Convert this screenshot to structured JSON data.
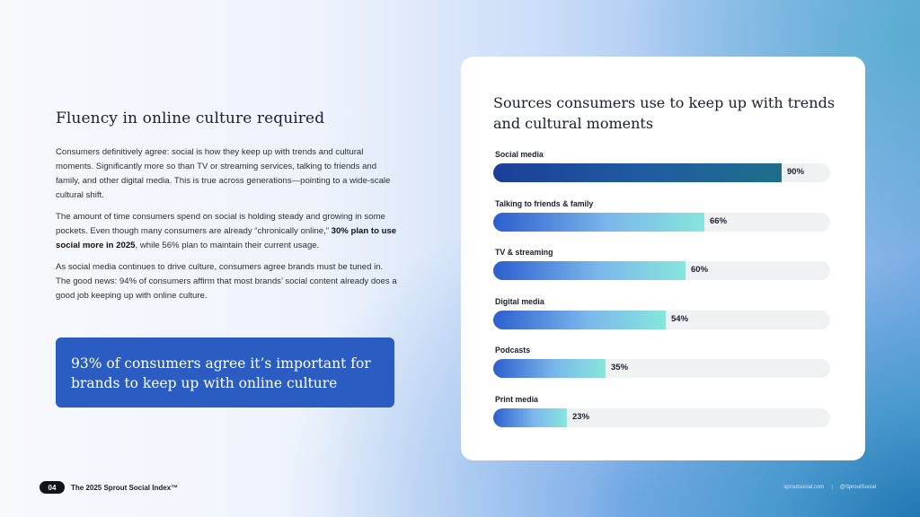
{
  "left": {
    "heading": "Fluency in online culture required",
    "p1": "Consumers definitively agree: social is how they keep up with trends and cultural moments. Significantly more so than TV or streaming services, talking to friends and family, and other digital media. This is true across generations—pointing to a wide-scale cultural shift.",
    "p2_a": "The amount of time consumers spend on social is holding steady and growing in some pockets. Even though many consumers are already “chronically online,” ",
    "p2_bold": "30% plan to use social more in 2025",
    "p2_b": ", while 56% plan to maintain their current usage.",
    "p3": "As social media continues to drive culture, consumers agree brands must be tuned in. The good news: 94% of consumers affirm that most brands’ social content already does a good job keeping up with online culture.",
    "callout": "93% of consumers agree it’s important for brands to keep up with online culture"
  },
  "chart_data": {
    "type": "bar",
    "orientation": "horizontal",
    "title": "Sources consumers use to keep up with trends and cultural moments",
    "categories": [
      "Social media",
      "Talking to friends & family",
      "TV & streaming",
      "Digital media",
      "Podcasts",
      "Print media"
    ],
    "values": [
      90,
      66,
      60,
      54,
      35,
      23
    ],
    "value_labels": [
      "90%",
      "66%",
      "60%",
      "54%",
      "35%",
      "23%"
    ],
    "unit": "%",
    "xlim": [
      0,
      100
    ],
    "highlight_index": 0
  },
  "footer": {
    "page_number": "04",
    "report_title": "The 2025 Sprout Social Index™",
    "website": "sproutsocial.com",
    "handle": "@SproutSocial"
  },
  "colors": {
    "callout_bg": "#2a5cc2",
    "bar_gradient_start": "#2d5fce",
    "bar_gradient_end": "#86e6dc",
    "highlight_bar": "#1b3f9a",
    "track": "#f0f1f3"
  }
}
